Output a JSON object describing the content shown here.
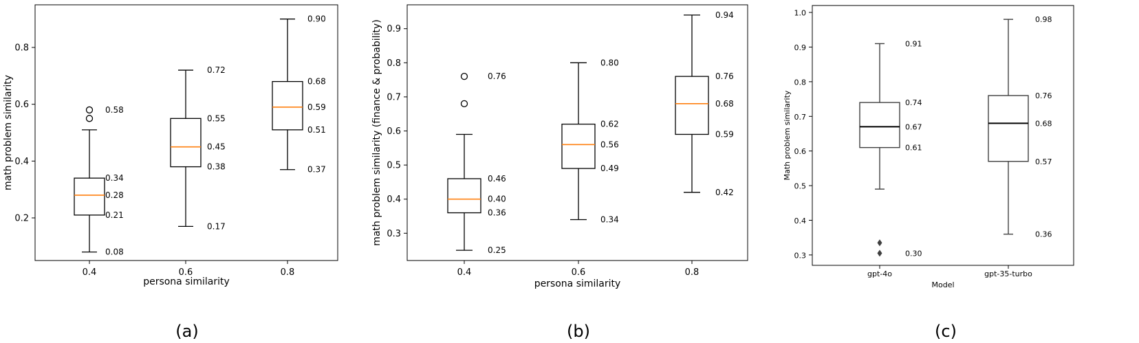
{
  "chart_data": [
    {
      "type": "boxplot",
      "panel_label": "(a)",
      "xlabel": "persona similarity",
      "ylabel": "math problem similarity",
      "ylim": [
        0.05,
        0.95
      ],
      "yticks": [
        "0.2",
        "0.4",
        "0.6",
        "0.8"
      ],
      "categories": [
        "0.4",
        "0.6",
        "0.8"
      ],
      "median_color": "#ff7f0e",
      "boxes": [
        {
          "whisker_low": 0.08,
          "q1": 0.21,
          "median": 0.28,
          "q3": 0.34,
          "whisker_high": 0.51,
          "outliers": [
            0.55,
            0.58
          ],
          "labels": [
            "0.58",
            "0.34",
            "0.28",
            "0.21",
            "0.08"
          ]
        },
        {
          "whisker_low": 0.17,
          "q1": 0.38,
          "median": 0.45,
          "q3": 0.55,
          "whisker_high": 0.72,
          "outliers": [],
          "labels": [
            "0.72",
            "0.55",
            "0.45",
            "0.38",
            "0.17"
          ]
        },
        {
          "whisker_low": 0.37,
          "q1": 0.51,
          "median": 0.59,
          "q3": 0.68,
          "whisker_high": 0.9,
          "outliers": [],
          "labels": [
            "0.90",
            "0.68",
            "0.59",
            "0.51",
            "0.37"
          ]
        }
      ]
    },
    {
      "type": "boxplot",
      "panel_label": "(b)",
      "xlabel": "persona similarity",
      "ylabel": "math problem similarity (finance & probability)",
      "ylim": [
        0.22,
        0.97
      ],
      "yticks": [
        "0.3",
        "0.4",
        "0.5",
        "0.6",
        "0.7",
        "0.8",
        "0.9"
      ],
      "categories": [
        "0.4",
        "0.6",
        "0.8"
      ],
      "median_color": "#ff7f0e",
      "boxes": [
        {
          "whisker_low": 0.25,
          "q1": 0.36,
          "median": 0.4,
          "q3": 0.46,
          "whisker_high": 0.59,
          "outliers": [
            0.68,
            0.76
          ],
          "labels": [
            "0.76",
            "0.46",
            "0.40",
            "0.36",
            "0.25"
          ]
        },
        {
          "whisker_low": 0.34,
          "q1": 0.49,
          "median": 0.56,
          "q3": 0.62,
          "whisker_high": 0.8,
          "outliers": [],
          "labels": [
            "0.80",
            "0.62",
            "0.56",
            "0.49",
            "0.34"
          ]
        },
        {
          "whisker_low": 0.42,
          "q1": 0.59,
          "median": 0.68,
          "q3": 0.76,
          "whisker_high": 0.94,
          "outliers": [],
          "labels": [
            "0.94",
            "0.76",
            "0.68",
            "0.59",
            "0.42"
          ]
        }
      ]
    },
    {
      "type": "boxplot",
      "panel_label": "(c)",
      "xlabel": "Model",
      "ylabel": "Math problem similarity",
      "ylim": [
        0.27,
        1.02
      ],
      "yticks": [
        "0.3",
        "0.4",
        "0.5",
        "0.6",
        "0.7",
        "0.8",
        "0.9",
        "1.0"
      ],
      "categories": [
        "gpt-4o",
        "gpt-35-turbo"
      ],
      "median_color": "#000000",
      "boxes": [
        {
          "whisker_low": 0.49,
          "q1": 0.61,
          "median": 0.67,
          "q3": 0.74,
          "whisker_high": 0.91,
          "outliers": [
            0.305,
            0.335
          ],
          "labels": [
            "0.91",
            "0.74",
            "0.67",
            "0.61",
            "0.30"
          ]
        },
        {
          "whisker_low": 0.36,
          "q1": 0.57,
          "median": 0.68,
          "q3": 0.76,
          "whisker_high": 0.98,
          "outliers": [],
          "labels": [
            "0.98",
            "0.76",
            "0.68",
            "0.57",
            "0.36"
          ]
        }
      ]
    }
  ]
}
